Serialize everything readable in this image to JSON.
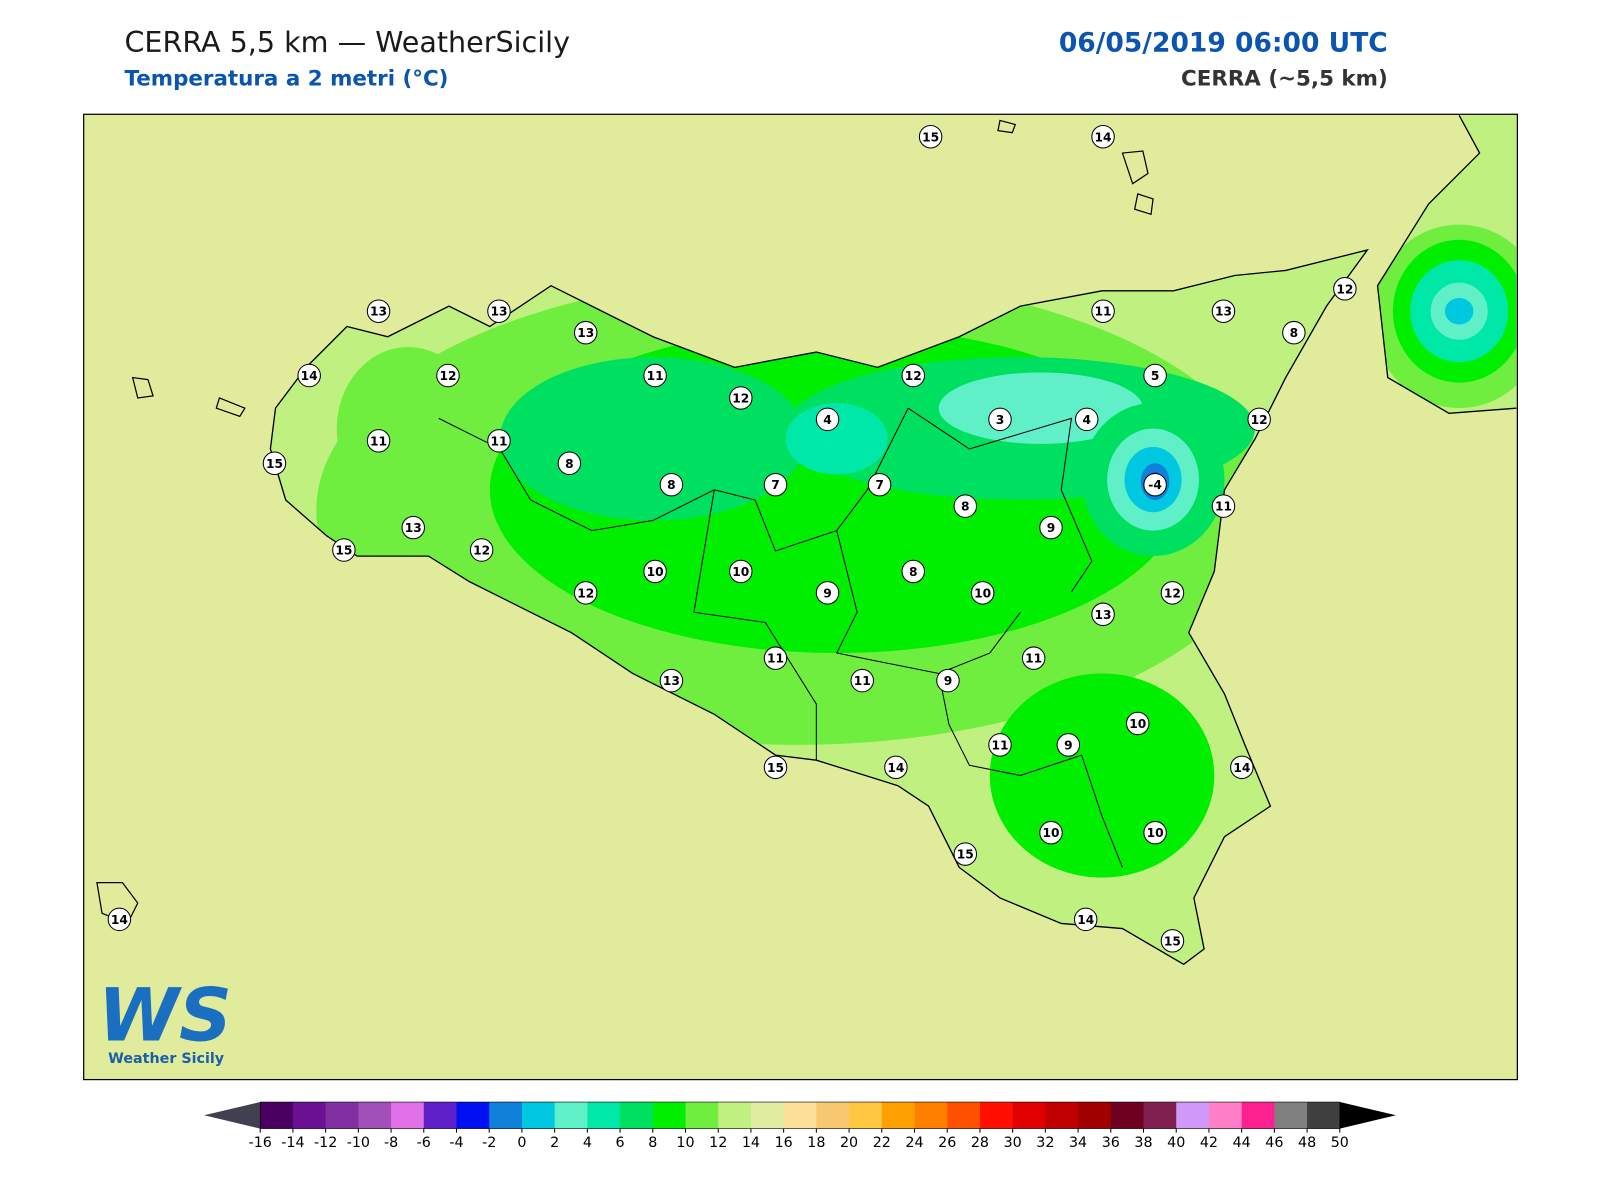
{
  "header": {
    "title": "CERRA 5,5 km — WeatherSicily",
    "subtitle": "Temperatura a 2 metri (°C)",
    "date": "06/05/2019 06:00 UTC",
    "model": "CERRA (~5,5 km)"
  },
  "logo": {
    "mark": "WS",
    "text": "Weather Sicily"
  },
  "stations": {
    "values": [
      15,
      14,
      13,
      13,
      13,
      11,
      13,
      12,
      8,
      14,
      12,
      11,
      12,
      12,
      5,
      4,
      3,
      4,
      12,
      11,
      11,
      8,
      15,
      8,
      7,
      7,
      -4,
      8,
      11,
      9,
      13,
      15,
      12,
      10,
      10,
      8,
      12,
      9,
      10,
      12,
      13,
      11,
      11,
      13,
      11,
      9,
      10,
      9,
      11,
      15,
      14,
      14,
      15,
      10,
      10,
      14,
      14,
      15
    ]
  },
  "colorbar": {
    "ticks": [
      -16,
      -14,
      -12,
      -10,
      -8,
      -6,
      -4,
      -2,
      0,
      2,
      4,
      6,
      8,
      10,
      12,
      14,
      16,
      18,
      20,
      22,
      24,
      26,
      28,
      30,
      32,
      34,
      36,
      38,
      40,
      42,
      44,
      46,
      48,
      50
    ],
    "colors": [
      "#4a0060",
      "#6a1090",
      "#8030a0",
      "#a050b8",
      "#e070e8",
      "#6020c8",
      "#0010f0",
      "#1080d8",
      "#00c8e0",
      "#60f0c8",
      "#00e8a8",
      "#00e060",
      "#00ee00",
      "#70ee40",
      "#c0f080",
      "#e0eca0",
      "#ffe098",
      "#f8c870",
      "#ffc840",
      "#ffa000",
      "#ff8000",
      "#ff5000",
      "#ff1000",
      "#e00000",
      "#c00000",
      "#a00000",
      "#700020",
      "#802050",
      "#d098f8",
      "#ff80c8",
      "#ff2090",
      "#808080",
      "#404040"
    ],
    "under_color": "#404050",
    "over_color": "#000000"
  }
}
